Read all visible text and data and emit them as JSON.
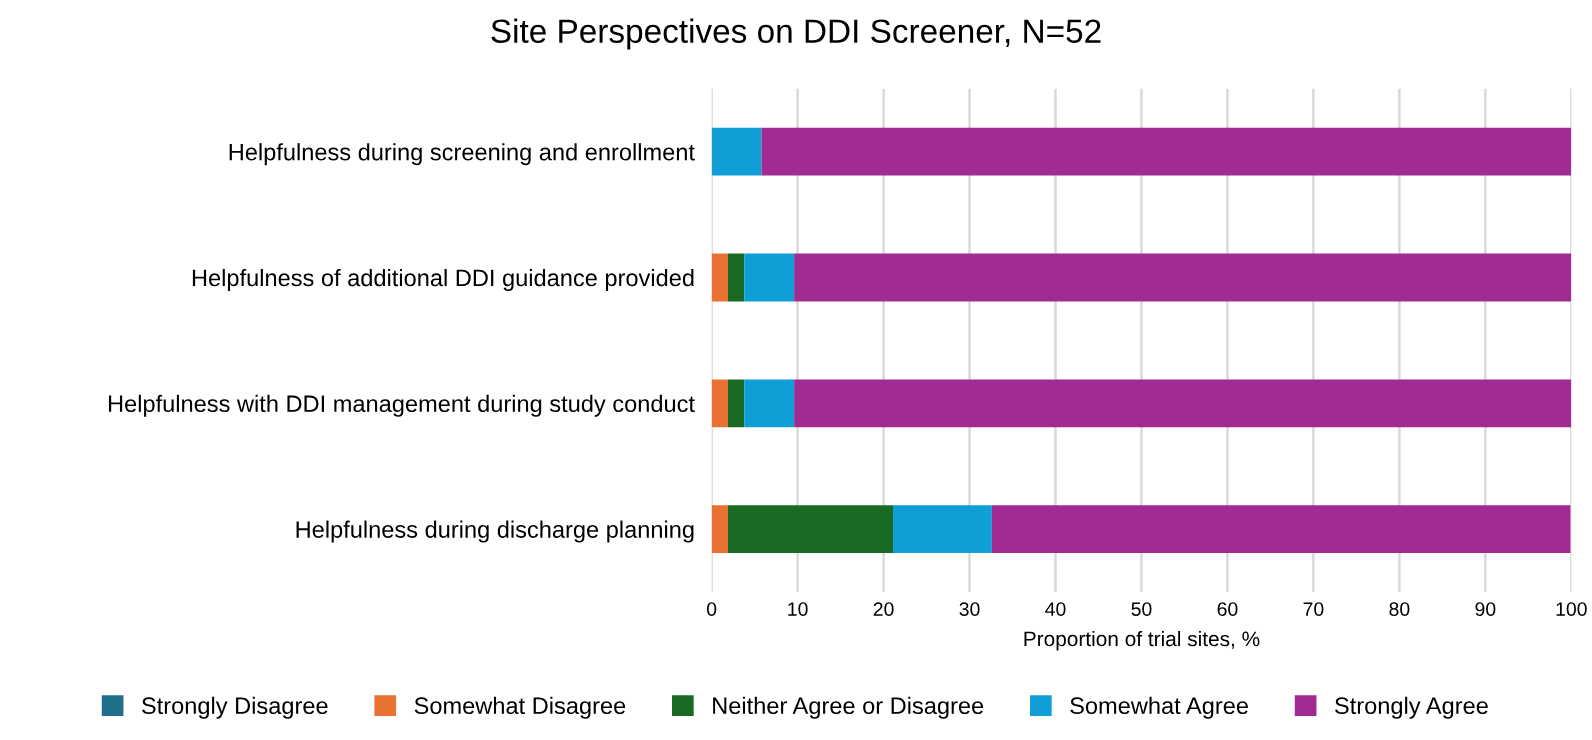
{
  "chart_data": {
    "type": "bar",
    "orientation": "horizontal",
    "stacked": true,
    "title": "Site Perspectives on DDI Screener, N=52",
    "xlabel": "Proportion of trial sites, %",
    "categories": [
      "Helpfulness during screening and enrollment",
      "Helpfulness of additional DDI guidance provided",
      "Helpfulness with DDI management during study conduct",
      "Helpfulness during discharge planning"
    ],
    "series": [
      {
        "name": "Strongly Disagree",
        "color": "#1f6e8c",
        "values": [
          0,
          0,
          0,
          0
        ]
      },
      {
        "name": "Somewhat Disagree",
        "color": "#e97132",
        "values": [
          0,
          1.9,
          1.9,
          1.9
        ]
      },
      {
        "name": "Neither Agree or Disagree",
        "color": "#196b24",
        "values": [
          0,
          1.9,
          1.9,
          19.2
        ]
      },
      {
        "name": "Somewhat Agree",
        "color": "#0f9ed5",
        "values": [
          5.8,
          5.8,
          5.8,
          11.5
        ]
      },
      {
        "name": "Strongly Agree",
        "color": "#a02b93",
        "values": [
          94.2,
          90.4,
          90.4,
          67.3
        ]
      }
    ],
    "xlim": [
      0,
      100
    ],
    "xticks": [
      0,
      10,
      20,
      30,
      40,
      50,
      60,
      70,
      80,
      90,
      100
    ],
    "grid": "x",
    "legend": "bottom"
  }
}
